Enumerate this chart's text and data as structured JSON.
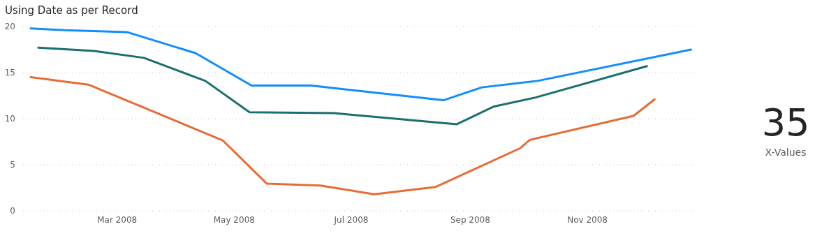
{
  "chart_data": [
    {
      "type": "line",
      "title": "Using Date as per Record",
      "xlim": [
        "2008-01-12",
        "2008-12-27"
      ],
      "xticks": [
        {
          "value": "2008-03-01",
          "label": "Mar 2008"
        },
        {
          "value": "2008-05-01",
          "label": "May 2008"
        },
        {
          "value": "2008-07-01",
          "label": "Jul 2008"
        },
        {
          "value": "2008-09-01",
          "label": "Sep 2008"
        },
        {
          "value": "2008-11-01",
          "label": "Nov 2008"
        }
      ],
      "ylim": [
        0,
        20
      ],
      "yticks": [
        0,
        5,
        10,
        15,
        20
      ],
      "grid": "y",
      "marker": "none",
      "line_style": "solid",
      "series": [
        {
          "color": "#118dff",
          "x": [
            "2008-01-16",
            "2008-02-03",
            "2008-03-06",
            "2008-04-11",
            "2008-05-10",
            "2008-06-10",
            "2008-08-18",
            "2008-09-07",
            "2008-10-06",
            "2008-12-25"
          ],
          "values": [
            19.8,
            19.6,
            19.4,
            17.1,
            13.6,
            13.6,
            12.0,
            13.4,
            14.1,
            17.5
          ]
        },
        {
          "color": "#1a6f6f",
          "x": [
            "2008-01-20",
            "2008-02-18",
            "2008-03-15",
            "2008-04-16",
            "2008-05-09",
            "2008-06-22",
            "2008-08-25",
            "2008-09-13",
            "2008-10-05",
            "2008-12-02"
          ],
          "values": [
            17.7,
            17.35,
            16.6,
            14.1,
            10.7,
            10.6,
            9.4,
            11.3,
            12.3,
            15.7
          ]
        },
        {
          "color": "#e66c37",
          "x": [
            "2008-01-16",
            "2008-02-15",
            "2008-04-25",
            "2008-05-18",
            "2008-06-15",
            "2008-07-13",
            "2008-08-14",
            "2008-09-27",
            "2008-10-02",
            "2008-11-25",
            "2008-12-06"
          ],
          "values": [
            14.5,
            13.7,
            7.65,
            2.95,
            2.75,
            1.8,
            2.6,
            6.8,
            7.7,
            10.3,
            12.1
          ]
        }
      ]
    },
    {
      "type": "other",
      "annotations": [
        "35",
        "X-Values"
      ]
    }
  ]
}
